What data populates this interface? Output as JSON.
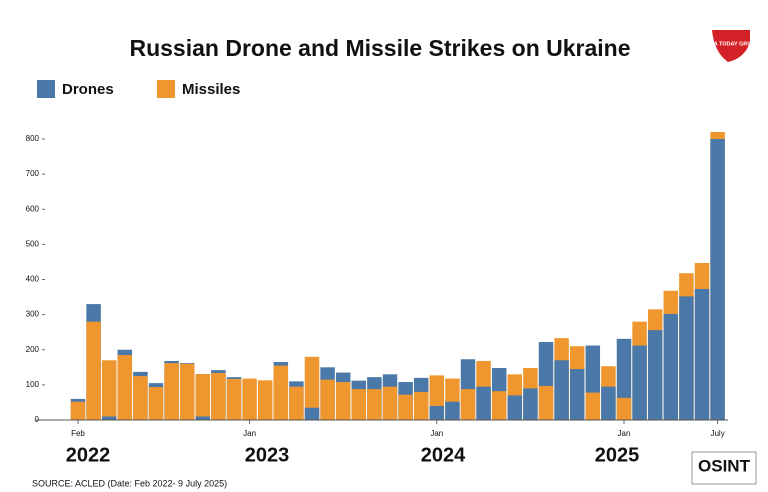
{
  "chart_data": {
    "type": "bar",
    "title": "Russian Drone and Missile Strikes on Ukraine",
    "categories": [
      "Feb",
      null,
      null,
      null,
      null,
      null,
      null,
      null,
      null,
      null,
      null,
      "Jan",
      null,
      null,
      null,
      null,
      null,
      null,
      null,
      null,
      null,
      null,
      null,
      "Jan",
      null,
      null,
      null,
      null,
      null,
      null,
      null,
      null,
      null,
      null,
      null,
      "Jan",
      null,
      null,
      null,
      null,
      null,
      "July"
    ],
    "series": [
      {
        "name": "Drones",
        "color": "#4a78a8",
        "values": [
          60,
          330,
          10,
          200,
          137,
          105,
          168,
          162,
          10,
          142,
          122,
          0,
          0,
          165,
          110,
          35,
          150,
          135,
          112,
          122,
          130,
          108,
          120,
          40,
          52,
          173,
          95,
          148,
          70,
          90,
          222,
          170,
          145,
          212,
          95,
          231,
          212,
          256,
          302,
          352,
          373,
          800
        ]
      },
      {
        "name": "Missiles",
        "color": "#f0962e",
        "values": [
          52,
          280,
          170,
          185,
          125,
          94,
          162,
          160,
          131,
          134,
          117,
          118,
          113,
          155,
          95,
          180,
          115,
          108,
          88,
          88,
          95,
          72,
          80,
          127,
          118,
          88,
          168,
          82,
          130,
          148,
          97,
          233,
          210,
          78,
          153,
          63,
          280,
          315,
          368,
          418,
          447,
          820
        ]
      }
    ],
    "ylim": [
      0,
      850
    ],
    "yticks": [
      0,
      100,
      200,
      300,
      400,
      500,
      600,
      700,
      800
    ],
    "annotations": [
      "2022",
      "2023",
      "2024",
      "2025"
    ],
    "source": "SOURCE: ACLED (Date: Feb 2022-  9 July 2025)",
    "logos": [
      "INDIA TODAY GROUP",
      "OSINT"
    ]
  }
}
